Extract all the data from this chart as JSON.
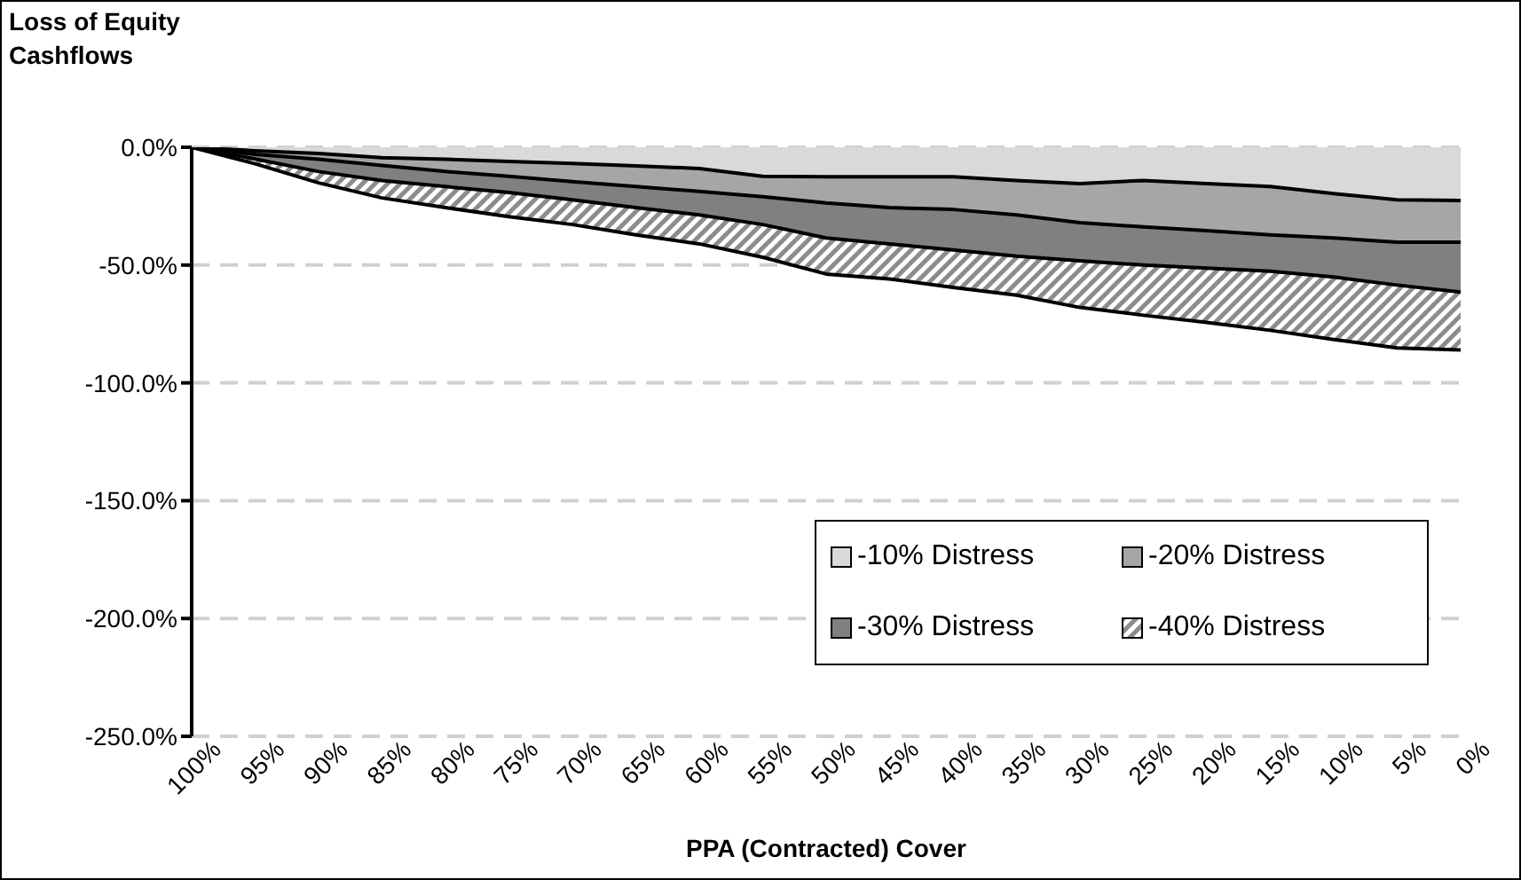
{
  "chart_data": {
    "type": "area",
    "ylabel": "Loss of Equity Cashflows",
    "xlabel": "PPA (Contracted) Cover",
    "categories": [
      "100%",
      "95%",
      "90%",
      "85%",
      "80%",
      "75%",
      "70%",
      "65%",
      "60%",
      "55%",
      "50%",
      "45%",
      "40%",
      "35%",
      "30%",
      "25%",
      "20%",
      "15%",
      "10%",
      "5%",
      "0%"
    ],
    "series": [
      {
        "name": "-10% Distress",
        "color": "#d9d9d9",
        "values": [
          0,
          -1.5,
          -2.6,
          -4.4,
          -5.1,
          -6,
          -6.9,
          -7.9,
          -9,
          -12.3,
          -12.5,
          -12.5,
          -12.5,
          -14.1,
          -15.4,
          -14.1,
          -15.4,
          -16.7,
          -19.7,
          -22.3,
          -22.6
        ]
      },
      {
        "name": "-20% Distress",
        "color": "#a6a6a6",
        "values": [
          0,
          -3,
          -5.1,
          -7.7,
          -10.3,
          -12.3,
          -14.6,
          -16.7,
          -18.7,
          -21,
          -23.6,
          -25.6,
          -26.4,
          -28.7,
          -32,
          -33.8,
          -35.4,
          -37.2,
          -38.5,
          -40.3,
          -40.3
        ]
      },
      {
        "name": "-30% Distress",
        "color": "#808080",
        "values": [
          0,
          -5,
          -10.3,
          -14.1,
          -16.7,
          -19.2,
          -22.3,
          -25.6,
          -28.7,
          -32.8,
          -38.5,
          -41,
          -43.6,
          -46.2,
          -48.2,
          -50,
          -51.3,
          -52.6,
          -55.1,
          -58.5,
          -61.5
        ]
      },
      {
        "name": "-40% Distress",
        "color": "#8c8c8c",
        "values": [
          0,
          -7,
          -15.1,
          -21.5,
          -25.6,
          -29.5,
          -32.8,
          -37.2,
          -41,
          -46.7,
          -53.8,
          -55.9,
          -59.5,
          -62.8,
          -68,
          -71.3,
          -74.4,
          -77.7,
          -81.6,
          -85.2,
          -86
        ]
      }
    ],
    "ylim": [
      -250,
      0
    ],
    "yticks": [
      {
        "value": 0,
        "label": "0.0%"
      },
      {
        "value": -50,
        "label": "-50.0%"
      },
      {
        "value": -100,
        "label": "-100.0%"
      },
      {
        "value": -150,
        "label": "-150.0%"
      },
      {
        "value": -200,
        "label": "-200.0%"
      },
      {
        "value": -250,
        "label": "-250.0%"
      }
    ],
    "grid": "y",
    "legend": "bottom right"
  }
}
